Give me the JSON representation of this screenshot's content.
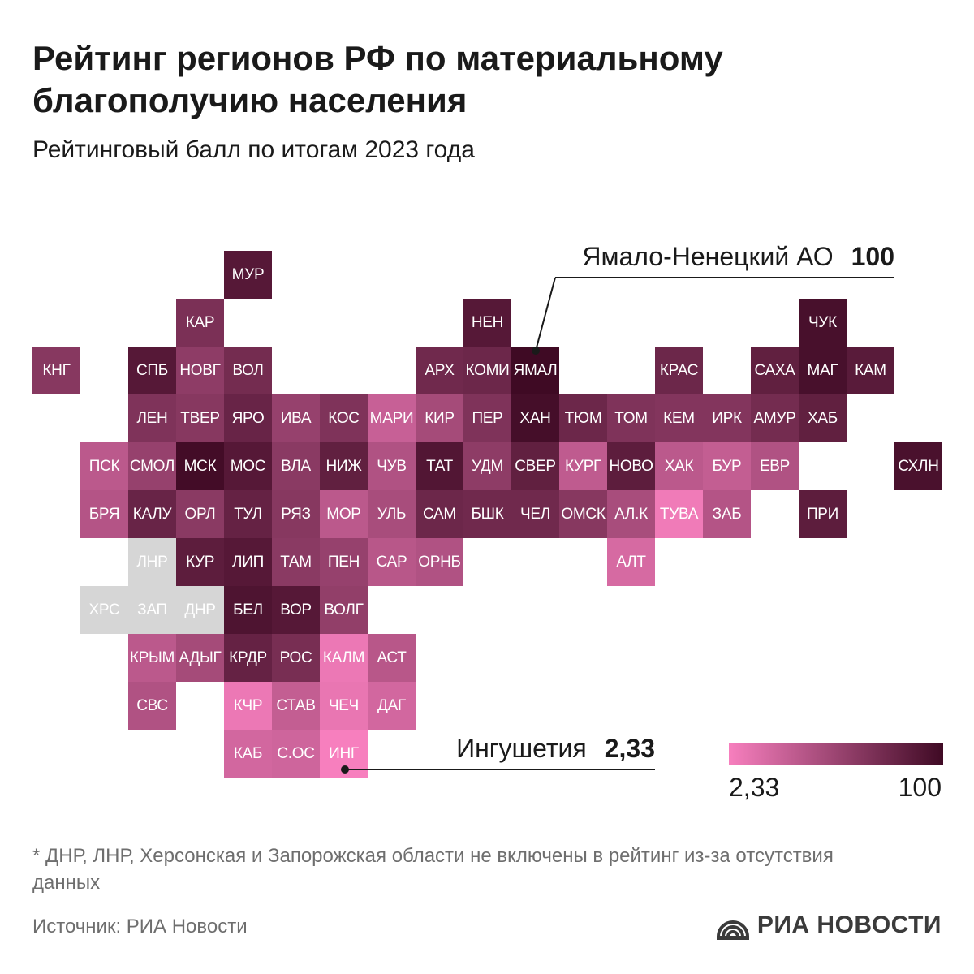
{
  "header": {
    "title": "Рейтинг регионов РФ по материальному благополучию населения",
    "subtitle": "Рейтинговый балл по итогам 2023 года"
  },
  "chart_data": {
    "type": "heatmap",
    "title": "Рейтинг регионов РФ по материальному благополучию населения",
    "subtitle": "Рейтинговый балл по итогам 2023 года",
    "scale": {
      "min": 2.33,
      "max": 100,
      "min_color": "#f77fbe",
      "max_color": "#3f0a24",
      "na_color": "#d6d6d6"
    },
    "legend": {
      "min_label": "2,33",
      "max_label": "100",
      "placement": "bottom-right"
    },
    "annotations": [
      {
        "region": "ЯМАЛ",
        "label": "Ямало-Ненецкий АО",
        "value_label": "100"
      },
      {
        "region": "ИНГ",
        "label": "Ингушетия",
        "value_label": "2,33"
      }
    ],
    "tiles": [
      {
        "code": "МУР",
        "row": 0,
        "col": 4,
        "value": 88
      },
      {
        "code": "КАР",
        "row": 1,
        "col": 3,
        "value": 68
      },
      {
        "code": "НЕН",
        "row": 1,
        "col": 9,
        "value": 88
      },
      {
        "code": "ЧУК",
        "row": 1,
        "col": 16,
        "value": 95
      },
      {
        "code": "КНГ",
        "row": 2,
        "col": 0,
        "value": 62
      },
      {
        "code": "СПБ",
        "row": 2,
        "col": 2,
        "value": 88
      },
      {
        "code": "НОВГ",
        "row": 2,
        "col": 3,
        "value": 58
      },
      {
        "code": "ВОЛ",
        "row": 2,
        "col": 4,
        "value": 72
      },
      {
        "code": "АРХ",
        "row": 2,
        "col": 8,
        "value": 74
      },
      {
        "code": "КОМИ",
        "row": 2,
        "col": 9,
        "value": 76
      },
      {
        "code": "ЯМАЛ",
        "row": 2,
        "col": 10,
        "value": 100
      },
      {
        "code": "КРАС",
        "row": 2,
        "col": 13,
        "value": 76
      },
      {
        "code": "САХА",
        "row": 2,
        "col": 15,
        "value": 82
      },
      {
        "code": "МАГ",
        "row": 2,
        "col": 16,
        "value": 95
      },
      {
        "code": "КАМ",
        "row": 2,
        "col": 17,
        "value": 86
      },
      {
        "code": "ЛЕН",
        "row": 3,
        "col": 2,
        "value": 66
      },
      {
        "code": "ТВЕР",
        "row": 3,
        "col": 3,
        "value": 62
      },
      {
        "code": "ЯРО",
        "row": 3,
        "col": 4,
        "value": 78
      },
      {
        "code": "ИВА",
        "row": 3,
        "col": 5,
        "value": 54
      },
      {
        "code": "КОС",
        "row": 3,
        "col": 6,
        "value": 66
      },
      {
        "code": "МАРИ",
        "row": 3,
        "col": 7,
        "value": 28
      },
      {
        "code": "КИР",
        "row": 3,
        "col": 8,
        "value": 46
      },
      {
        "code": "ПЕР",
        "row": 3,
        "col": 9,
        "value": 66
      },
      {
        "code": "ХАН",
        "row": 3,
        "col": 10,
        "value": 97
      },
      {
        "code": "ТЮМ",
        "row": 3,
        "col": 11,
        "value": 76
      },
      {
        "code": "ТОМ",
        "row": 3,
        "col": 12,
        "value": 66
      },
      {
        "code": "КЕМ",
        "row": 3,
        "col": 13,
        "value": 64
      },
      {
        "code": "ИРК",
        "row": 3,
        "col": 14,
        "value": 64
      },
      {
        "code": "АМУР",
        "row": 3,
        "col": 15,
        "value": 72
      },
      {
        "code": "ХАБ",
        "row": 3,
        "col": 16,
        "value": 82
      },
      {
        "code": "ПСК",
        "row": 4,
        "col": 1,
        "value": 34
      },
      {
        "code": "СМОЛ",
        "row": 4,
        "col": 2,
        "value": 54
      },
      {
        "code": "МСК",
        "row": 4,
        "col": 3,
        "value": 98
      },
      {
        "code": "МОС",
        "row": 4,
        "col": 4,
        "value": 88
      },
      {
        "code": "ВЛА",
        "row": 4,
        "col": 5,
        "value": 60
      },
      {
        "code": "НИЖ",
        "row": 4,
        "col": 6,
        "value": 82
      },
      {
        "code": "ЧУВ",
        "row": 4,
        "col": 7,
        "value": 40
      },
      {
        "code": "ТАТ",
        "row": 4,
        "col": 8,
        "value": 90
      },
      {
        "code": "УДМ",
        "row": 4,
        "col": 9,
        "value": 58
      },
      {
        "code": "СВЕР",
        "row": 4,
        "col": 10,
        "value": 82
      },
      {
        "code": "КУРГ",
        "row": 4,
        "col": 11,
        "value": 32
      },
      {
        "code": "НОВО",
        "row": 4,
        "col": 12,
        "value": 84
      },
      {
        "code": "ХАК",
        "row": 4,
        "col": 13,
        "value": 34
      },
      {
        "code": "БУР",
        "row": 4,
        "col": 14,
        "value": 30
      },
      {
        "code": "ЕВР",
        "row": 4,
        "col": 15,
        "value": 40
      },
      {
        "code": "СХЛН",
        "row": 4,
        "col": 18,
        "value": 94
      },
      {
        "code": "БРЯ",
        "row": 5,
        "col": 1,
        "value": 38
      },
      {
        "code": "КАЛУ",
        "row": 5,
        "col": 2,
        "value": 78
      },
      {
        "code": "ОРЛ",
        "row": 5,
        "col": 3,
        "value": 60
      },
      {
        "code": "ТУЛ",
        "row": 5,
        "col": 4,
        "value": 80
      },
      {
        "code": "РЯЗ",
        "row": 5,
        "col": 5,
        "value": 62
      },
      {
        "code": "МОР",
        "row": 5,
        "col": 6,
        "value": 34
      },
      {
        "code": "УЛЬ",
        "row": 5,
        "col": 7,
        "value": 44
      },
      {
        "code": "САМ",
        "row": 5,
        "col": 8,
        "value": 76
      },
      {
        "code": "БШК",
        "row": 5,
        "col": 9,
        "value": 74
      },
      {
        "code": "ЧЕЛ",
        "row": 5,
        "col": 10,
        "value": 74
      },
      {
        "code": "ОМСК",
        "row": 5,
        "col": 11,
        "value": 62
      },
      {
        "code": "АЛ.К",
        "row": 5,
        "col": 12,
        "value": 44
      },
      {
        "code": "ТУВА",
        "row": 5,
        "col": 13,
        "value": 6
      },
      {
        "code": "ЗАБ",
        "row": 5,
        "col": 14,
        "value": 38
      },
      {
        "code": "ПРИ",
        "row": 5,
        "col": 16,
        "value": 84
      },
      {
        "code": "ЛНР",
        "row": 6,
        "col": 2,
        "value": null
      },
      {
        "code": "КУР",
        "row": 6,
        "col": 3,
        "value": 84
      },
      {
        "code": "ЛИП",
        "row": 6,
        "col": 4,
        "value": 88
      },
      {
        "code": "ТАМ",
        "row": 6,
        "col": 5,
        "value": 60
      },
      {
        "code": "ПЕН",
        "row": 6,
        "col": 6,
        "value": 54
      },
      {
        "code": "САР",
        "row": 6,
        "col": 7,
        "value": 36
      },
      {
        "code": "ОРНБ",
        "row": 6,
        "col": 8,
        "value": 40
      },
      {
        "code": "АЛТ",
        "row": 6,
        "col": 12,
        "value": 20
      },
      {
        "code": "ХРС",
        "row": 7,
        "col": 1,
        "value": null
      },
      {
        "code": "ЗАП",
        "row": 7,
        "col": 2,
        "value": null
      },
      {
        "code": "ДНР",
        "row": 7,
        "col": 3,
        "value": null
      },
      {
        "code": "БЕЛ",
        "row": 7,
        "col": 4,
        "value": 92
      },
      {
        "code": "ВОР",
        "row": 7,
        "col": 5,
        "value": 88
      },
      {
        "code": "ВОЛГ",
        "row": 7,
        "col": 6,
        "value": 56
      },
      {
        "code": "КРЫМ",
        "row": 8,
        "col": 2,
        "value": 34
      },
      {
        "code": "АДЫГ",
        "row": 8,
        "col": 3,
        "value": 46
      },
      {
        "code": "КРДР",
        "row": 8,
        "col": 4,
        "value": 80
      },
      {
        "code": "РОС",
        "row": 8,
        "col": 5,
        "value": 70
      },
      {
        "code": "КАЛМ",
        "row": 8,
        "col": 6,
        "value": 8
      },
      {
        "code": "АСТ",
        "row": 8,
        "col": 7,
        "value": 36
      },
      {
        "code": "СВС",
        "row": 9,
        "col": 2,
        "value": 40
      },
      {
        "code": "КЧР",
        "row": 9,
        "col": 4,
        "value": 8
      },
      {
        "code": "СТАВ",
        "row": 9,
        "col": 5,
        "value": 30
      },
      {
        "code": "ЧЕЧ",
        "row": 9,
        "col": 6,
        "value": 10
      },
      {
        "code": "ДАГ",
        "row": 9,
        "col": 7,
        "value": 22
      },
      {
        "code": "КАБ",
        "row": 10,
        "col": 4,
        "value": 22
      },
      {
        "code": "С.ОС",
        "row": 10,
        "col": 5,
        "value": 24
      },
      {
        "code": "ИНГ",
        "row": 10,
        "col": 6,
        "value": 2.33
      }
    ]
  },
  "footer": {
    "footnote": "* ДНР, ЛНР, Херсонская и Запорожская области не включены в рейтинг из-за отсутствия данных",
    "source": "Источник: РИА Новости",
    "logo_text": "РИА НОВОСТИ",
    "logo_icon": "ria-novosti-logo-icon"
  }
}
